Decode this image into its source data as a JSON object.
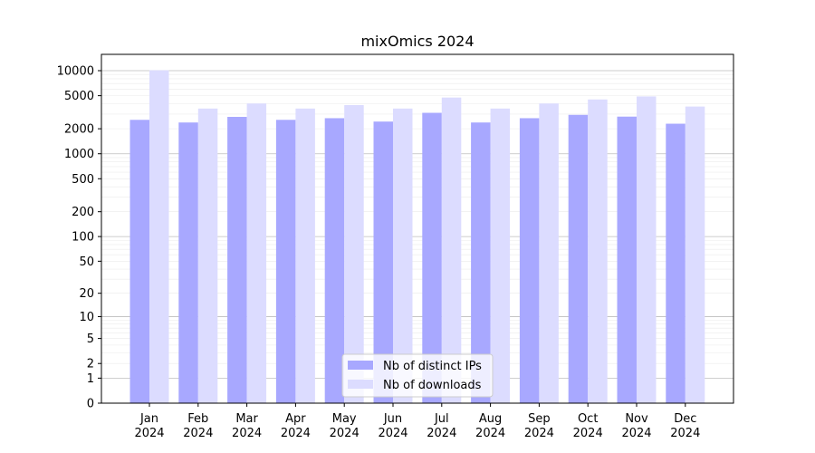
{
  "chart_data": {
    "type": "bar",
    "title": "mixOmics 2024",
    "xlabel": "",
    "ylabel": "",
    "yscale": "symlog",
    "ylim": [
      0,
      15000
    ],
    "yticks": [
      0,
      1,
      2,
      5,
      10,
      20,
      50,
      100,
      200,
      500,
      1000,
      2000,
      5000,
      10000
    ],
    "ytick_labels": [
      "0",
      "1",
      "2",
      "5",
      "10",
      "20",
      "50",
      "100",
      "200",
      "500",
      "1000",
      "2000",
      "5000",
      "10000"
    ],
    "grid": true,
    "legend_position": "bottom-center",
    "categories": [
      [
        "Jan",
        "2024"
      ],
      [
        "Feb",
        "2024"
      ],
      [
        "Mar",
        "2024"
      ],
      [
        "Apr",
        "2024"
      ],
      [
        "May",
        "2024"
      ],
      [
        "Jun",
        "2024"
      ],
      [
        "Jul",
        "2024"
      ],
      [
        "Aug",
        "2024"
      ],
      [
        "Sep",
        "2024"
      ],
      [
        "Oct",
        "2024"
      ],
      [
        "Nov",
        "2024"
      ],
      [
        "Dec",
        "2024"
      ]
    ],
    "series": [
      {
        "name": "Nb of distinct IPs",
        "color": "#a8a8ff",
        "values": [
          2560,
          2380,
          2780,
          2560,
          2680,
          2440,
          3110,
          2380,
          2680,
          2940,
          2800,
          2300
        ]
      },
      {
        "name": "Nb of downloads",
        "color": "#dcdcff",
        "values": [
          10100,
          3500,
          4030,
          3500,
          3850,
          3500,
          4750,
          3500,
          4030,
          4500,
          4900,
          3700
        ]
      }
    ]
  }
}
